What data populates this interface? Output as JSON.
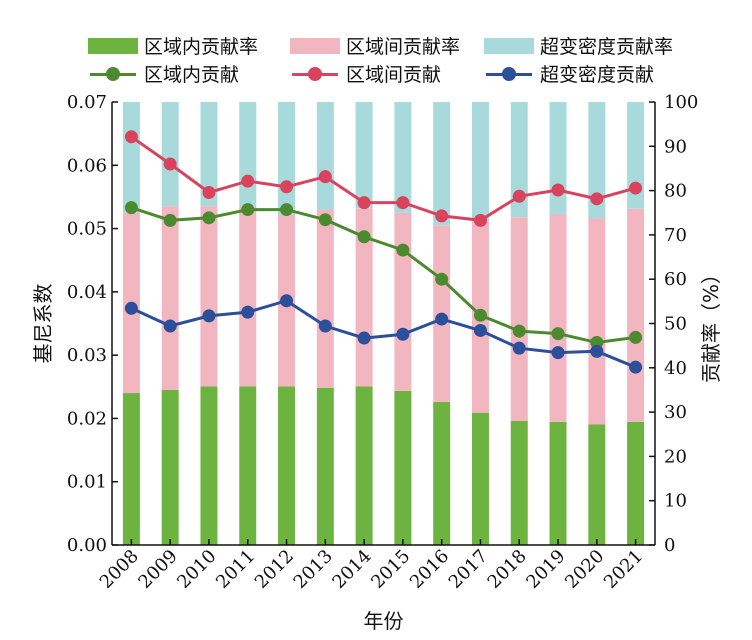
{
  "legend": {
    "bar_items": [
      {
        "label": "区域内贡献率",
        "color": "#6db33f"
      },
      {
        "label": "区域间贡献率",
        "color": "#f2b6c1"
      },
      {
        "label": "超变密度贡献率",
        "color": "#a8dadc"
      }
    ],
    "line_items": [
      {
        "label": "区域内贡献",
        "color": "#4c8a2f"
      },
      {
        "label": "区域间贡献",
        "color": "#d9435e"
      },
      {
        "label": "超变密度贡献",
        "color": "#2b4f9a"
      }
    ]
  },
  "chart_data": {
    "type": "bar",
    "categories": [
      "2008",
      "2009",
      "2010",
      "2011",
      "2012",
      "2013",
      "2014",
      "2015",
      "2016",
      "2017",
      "2018",
      "2019",
      "2020",
      "2021"
    ],
    "xlabel": "年份",
    "ylabel": "基尼系数",
    "ylabel_right": "贡献率（%）",
    "ylim": [
      0,
      0.07
    ],
    "ylim_right": [
      0,
      100
    ],
    "yticks": [
      "0.00",
      "0.01",
      "0.02",
      "0.03",
      "0.04",
      "0.05",
      "0.06",
      "0.07"
    ],
    "yticks_right": [
      "0",
      "10",
      "20",
      "30",
      "40",
      "50",
      "60",
      "70",
      "80",
      "90",
      "100"
    ],
    "bar_series": [
      {
        "name": "区域内贡献率",
        "color": "#6db33f",
        "values": [
          34.3,
          35.0,
          35.8,
          35.8,
          35.8,
          35.5,
          35.8,
          34.8,
          32.3,
          29.8,
          28.0,
          27.8,
          27.2,
          27.8
        ]
      },
      {
        "name": "区域间贡献率",
        "color": "#f2b6c1",
        "values": [
          40.7,
          41.5,
          40.7,
          40.7,
          38.7,
          40.2,
          40.2,
          40.2,
          39.9,
          43.2,
          46.0,
          46.8,
          46.6,
          48.1
        ]
      },
      {
        "name": "超变密度贡献率",
        "color": "#a8dadc",
        "values": [
          25.0,
          23.5,
          23.5,
          23.5,
          25.5,
          24.3,
          24.0,
          25.0,
          27.8,
          27.0,
          26.0,
          25.4,
          26.2,
          24.1
        ]
      }
    ],
    "line_series": [
      {
        "name": "区域内贡献",
        "color": "#4c8a2f",
        "values": [
          0.0533,
          0.0513,
          0.0517,
          0.053,
          0.053,
          0.0514,
          0.0487,
          0.0466,
          0.042,
          0.0363,
          0.0338,
          0.0334,
          0.032,
          0.0328
        ]
      },
      {
        "name": "区域间贡献",
        "color": "#d9435e",
        "values": [
          0.0645,
          0.0602,
          0.0557,
          0.0575,
          0.0566,
          0.0582,
          0.0541,
          0.0541,
          0.052,
          0.0513,
          0.0551,
          0.0561,
          0.0547,
          0.0564
        ]
      },
      {
        "name": "超变密度贡献",
        "color": "#2b4f9a",
        "values": [
          0.0374,
          0.0346,
          0.0362,
          0.0368,
          0.0386,
          0.0346,
          0.0327,
          0.0333,
          0.0357,
          0.0339,
          0.0311,
          0.0304,
          0.0306,
          0.0281
        ]
      }
    ]
  }
}
